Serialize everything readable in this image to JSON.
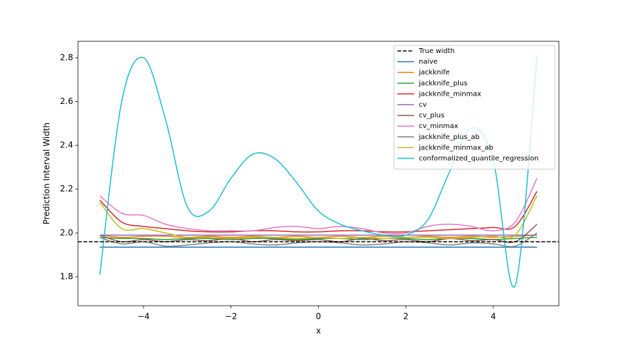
{
  "chart_data": {
    "type": "line",
    "xlabel": "x",
    "ylabel": "Prediction Interval Width",
    "x": [
      -5,
      -4.5,
      -4,
      -3.5,
      -3,
      -2.5,
      -2,
      -1.5,
      -1,
      -0.5,
      0,
      0.5,
      1,
      1.5,
      2,
      2.5,
      3,
      3.5,
      4,
      4.5,
      5
    ],
    "true_width": {
      "name": "True width",
      "value": 1.96,
      "color": "#000000"
    },
    "series": [
      {
        "name": "naive",
        "color": "#1f77b4",
        "values": [
          1.935,
          1.935,
          1.935,
          1.935,
          1.935,
          1.935,
          1.935,
          1.935,
          1.935,
          1.935,
          1.935,
          1.935,
          1.935,
          1.935,
          1.935,
          1.935,
          1.935,
          1.935,
          1.935,
          1.935,
          1.935
        ]
      },
      {
        "name": "jackknife",
        "color": "#ff7f0e",
        "values": [
          1.99,
          1.98,
          1.985,
          1.985,
          1.98,
          1.985,
          1.98,
          1.985,
          1.98,
          1.985,
          1.98,
          1.985,
          1.98,
          1.985,
          1.98,
          1.985,
          1.98,
          1.985,
          1.98,
          1.985,
          1.99
        ]
      },
      {
        "name": "jackknife_plus",
        "color": "#2ca02c",
        "values": [
          1.98,
          1.975,
          1.975,
          1.97,
          1.975,
          1.975,
          1.97,
          1.975,
          1.975,
          1.97,
          1.975,
          1.975,
          1.97,
          1.975,
          1.975,
          1.97,
          1.975,
          1.975,
          1.97,
          1.975,
          1.98
        ]
      },
      {
        "name": "jackknife_minmax",
        "color": "#d62728",
        "values": [
          2.15,
          2.05,
          2.03,
          2.02,
          2.01,
          2.005,
          2.005,
          2.01,
          2.01,
          2.005,
          2.005,
          2.01,
          2.01,
          2.005,
          2.005,
          2.01,
          2.015,
          2.02,
          2.025,
          2.03,
          2.19
        ]
      },
      {
        "name": "cv",
        "color": "#9467bd",
        "values": [
          1.99,
          1.99,
          1.99,
          1.99,
          1.99,
          1.99,
          1.99,
          1.99,
          1.99,
          1.99,
          1.99,
          1.99,
          1.99,
          1.99,
          1.99,
          1.99,
          1.99,
          1.99,
          1.99,
          1.99,
          1.99
        ]
      },
      {
        "name": "cv_plus",
        "color": "#8c564b",
        "values": [
          1.99,
          1.96,
          1.97,
          1.96,
          1.97,
          1.965,
          1.975,
          1.96,
          1.97,
          1.965,
          1.97,
          1.96,
          1.975,
          1.965,
          1.97,
          1.96,
          1.975,
          1.965,
          1.97,
          1.96,
          2.04
        ]
      },
      {
        "name": "cv_minmax",
        "color": "#e377c2",
        "values": [
          2.17,
          2.09,
          2.08,
          2.04,
          2.02,
          2.01,
          2.01,
          2.01,
          2.025,
          2.03,
          2.02,
          2.03,
          2.02,
          2.0,
          2.0,
          2.03,
          2.04,
          2.03,
          2.01,
          2.05,
          2.25
        ]
      },
      {
        "name": "jackknife_plus_ab",
        "color": "#7f7f7f",
        "values": [
          1.98,
          1.95,
          1.96,
          1.94,
          1.945,
          1.955,
          1.96,
          1.95,
          1.945,
          1.955,
          1.96,
          1.955,
          1.945,
          1.95,
          1.96,
          1.955,
          1.945,
          1.955,
          1.95,
          1.94,
          2.0
        ]
      },
      {
        "name": "jackknife_minmax_ab",
        "color": "#bcbd22",
        "values": [
          2.14,
          2.02,
          2.02,
          2.0,
          1.98,
          1.98,
          1.975,
          1.98,
          1.98,
          1.975,
          1.98,
          1.975,
          1.98,
          1.975,
          1.98,
          1.98,
          1.975,
          1.98,
          1.985,
          1.99,
          2.17
        ]
      },
      {
        "name": "conformalized_quantile_regression",
        "color": "#17becf",
        "values": [
          1.81,
          2.6,
          2.8,
          2.52,
          2.12,
          2.1,
          2.25,
          2.36,
          2.34,
          2.23,
          2.1,
          2.04,
          2.01,
          1.99,
          1.99,
          2.06,
          2.28,
          2.48,
          2.33,
          1.76,
          2.81
        ]
      }
    ],
    "xlim": [
      -5.5,
      5.5
    ],
    "xticks": [
      {
        "value": -4,
        "label": "−4"
      },
      {
        "value": -2,
        "label": "−2"
      },
      0,
      2,
      4
    ],
    "ylim": [
      1.668,
      2.875
    ],
    "yticks": [
      1.8,
      {
        "value": 2,
        "label": "2.0"
      },
      2.2,
      2.4,
      2.6,
      2.8
    ],
    "legend": "upper right"
  }
}
